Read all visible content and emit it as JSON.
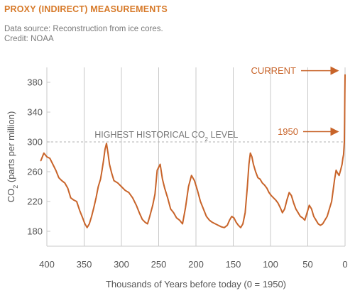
{
  "header": {
    "title": "PROXY (INDIRECT) MEASUREMENTS",
    "source": "Data source: Reconstruction from ice cores.",
    "credit": "Credit: NOAA"
  },
  "colors": {
    "title": "#d77a2a",
    "line": "#c8642a",
    "grid": "#c8c8c8",
    "dashed": "#b0b0b0",
    "text": "#555555"
  },
  "chart_data": {
    "type": "line",
    "xlabel": "Thousands of Years before today (0 = 1950)",
    "ylabel": "CO2 (parts per million)",
    "ylabel_main": "CO",
    "ylabel_sub": "2",
    "ylabel_rest": " (parts per million)",
    "xlim": [
      400,
      0
    ],
    "ylim": [
      160,
      400
    ],
    "x_ticks": [
      400,
      350,
      300,
      250,
      200,
      150,
      100,
      50,
      0
    ],
    "y_ticks": [
      180,
      220,
      260,
      300,
      340,
      380
    ],
    "grid": "vertical",
    "reference_line": {
      "value": 300,
      "label_main": "HIGHEST HISTORICAL CO",
      "label_sub": "2",
      "label_rest": " LEVEL"
    },
    "annotations": [
      {
        "text": "CURRENT",
        "x": 0,
        "y": 388
      },
      {
        "text": "1950",
        "x": 0,
        "y": 310
      }
    ],
    "series": [
      {
        "x": [
          408,
          404,
          400,
          396,
          392,
          388,
          384,
          380,
          376,
          372,
          368,
          364,
          360,
          356,
          352,
          349,
          346,
          343,
          340,
          337,
          334,
          331,
          328,
          326,
          324,
          322,
          320,
          318,
          316,
          313,
          310,
          305,
          300,
          295,
          290,
          285,
          280,
          276,
          272,
          268,
          265,
          262,
          258,
          255,
          252,
          248,
          245,
          242,
          238,
          234,
          230,
          226,
          222,
          218,
          214,
          210,
          206,
          202,
          198,
          194,
          190,
          186,
          182,
          178,
          174,
          170,
          166,
          162,
          158,
          155,
          152,
          149,
          146,
          143,
          140,
          137,
          134,
          131,
          129,
          127,
          125,
          123,
          120,
          117,
          114,
          111,
          108,
          105,
          102,
          99,
          96,
          93,
          90,
          87,
          84,
          81,
          78,
          75,
          72,
          69,
          66,
          63,
          60,
          57,
          54,
          51,
          48,
          45,
          42,
          39,
          36,
          33,
          30,
          27,
          24,
          21,
          18,
          16,
          14,
          12,
          10,
          8,
          6,
          4,
          3,
          2,
          1,
          0.6,
          0.3,
          0
        ],
        "values": [
          275,
          285,
          280,
          278,
          270,
          262,
          252,
          248,
          245,
          238,
          225,
          222,
          220,
          208,
          198,
          190,
          185,
          190,
          200,
          212,
          225,
          240,
          250,
          262,
          275,
          290,
          298,
          285,
          270,
          258,
          248,
          245,
          240,
          235,
          232,
          225,
          215,
          205,
          196,
          192,
          190,
          200,
          215,
          230,
          262,
          270,
          250,
          238,
          225,
          210,
          205,
          198,
          195,
          190,
          212,
          240,
          255,
          248,
          235,
          220,
          210,
          200,
          195,
          192,
          190,
          188,
          186,
          185,
          188,
          195,
          200,
          198,
          192,
          188,
          185,
          190,
          205,
          240,
          270,
          285,
          280,
          270,
          260,
          252,
          250,
          245,
          242,
          238,
          232,
          228,
          225,
          222,
          218,
          212,
          205,
          210,
          222,
          232,
          228,
          218,
          210,
          205,
          200,
          198,
          195,
          205,
          215,
          210,
          200,
          195,
          190,
          188,
          190,
          195,
          200,
          210,
          220,
          235,
          250,
          262,
          258,
          255,
          262,
          270,
          278,
          283,
          300,
          330,
          365,
          390
        ]
      }
    ]
  }
}
